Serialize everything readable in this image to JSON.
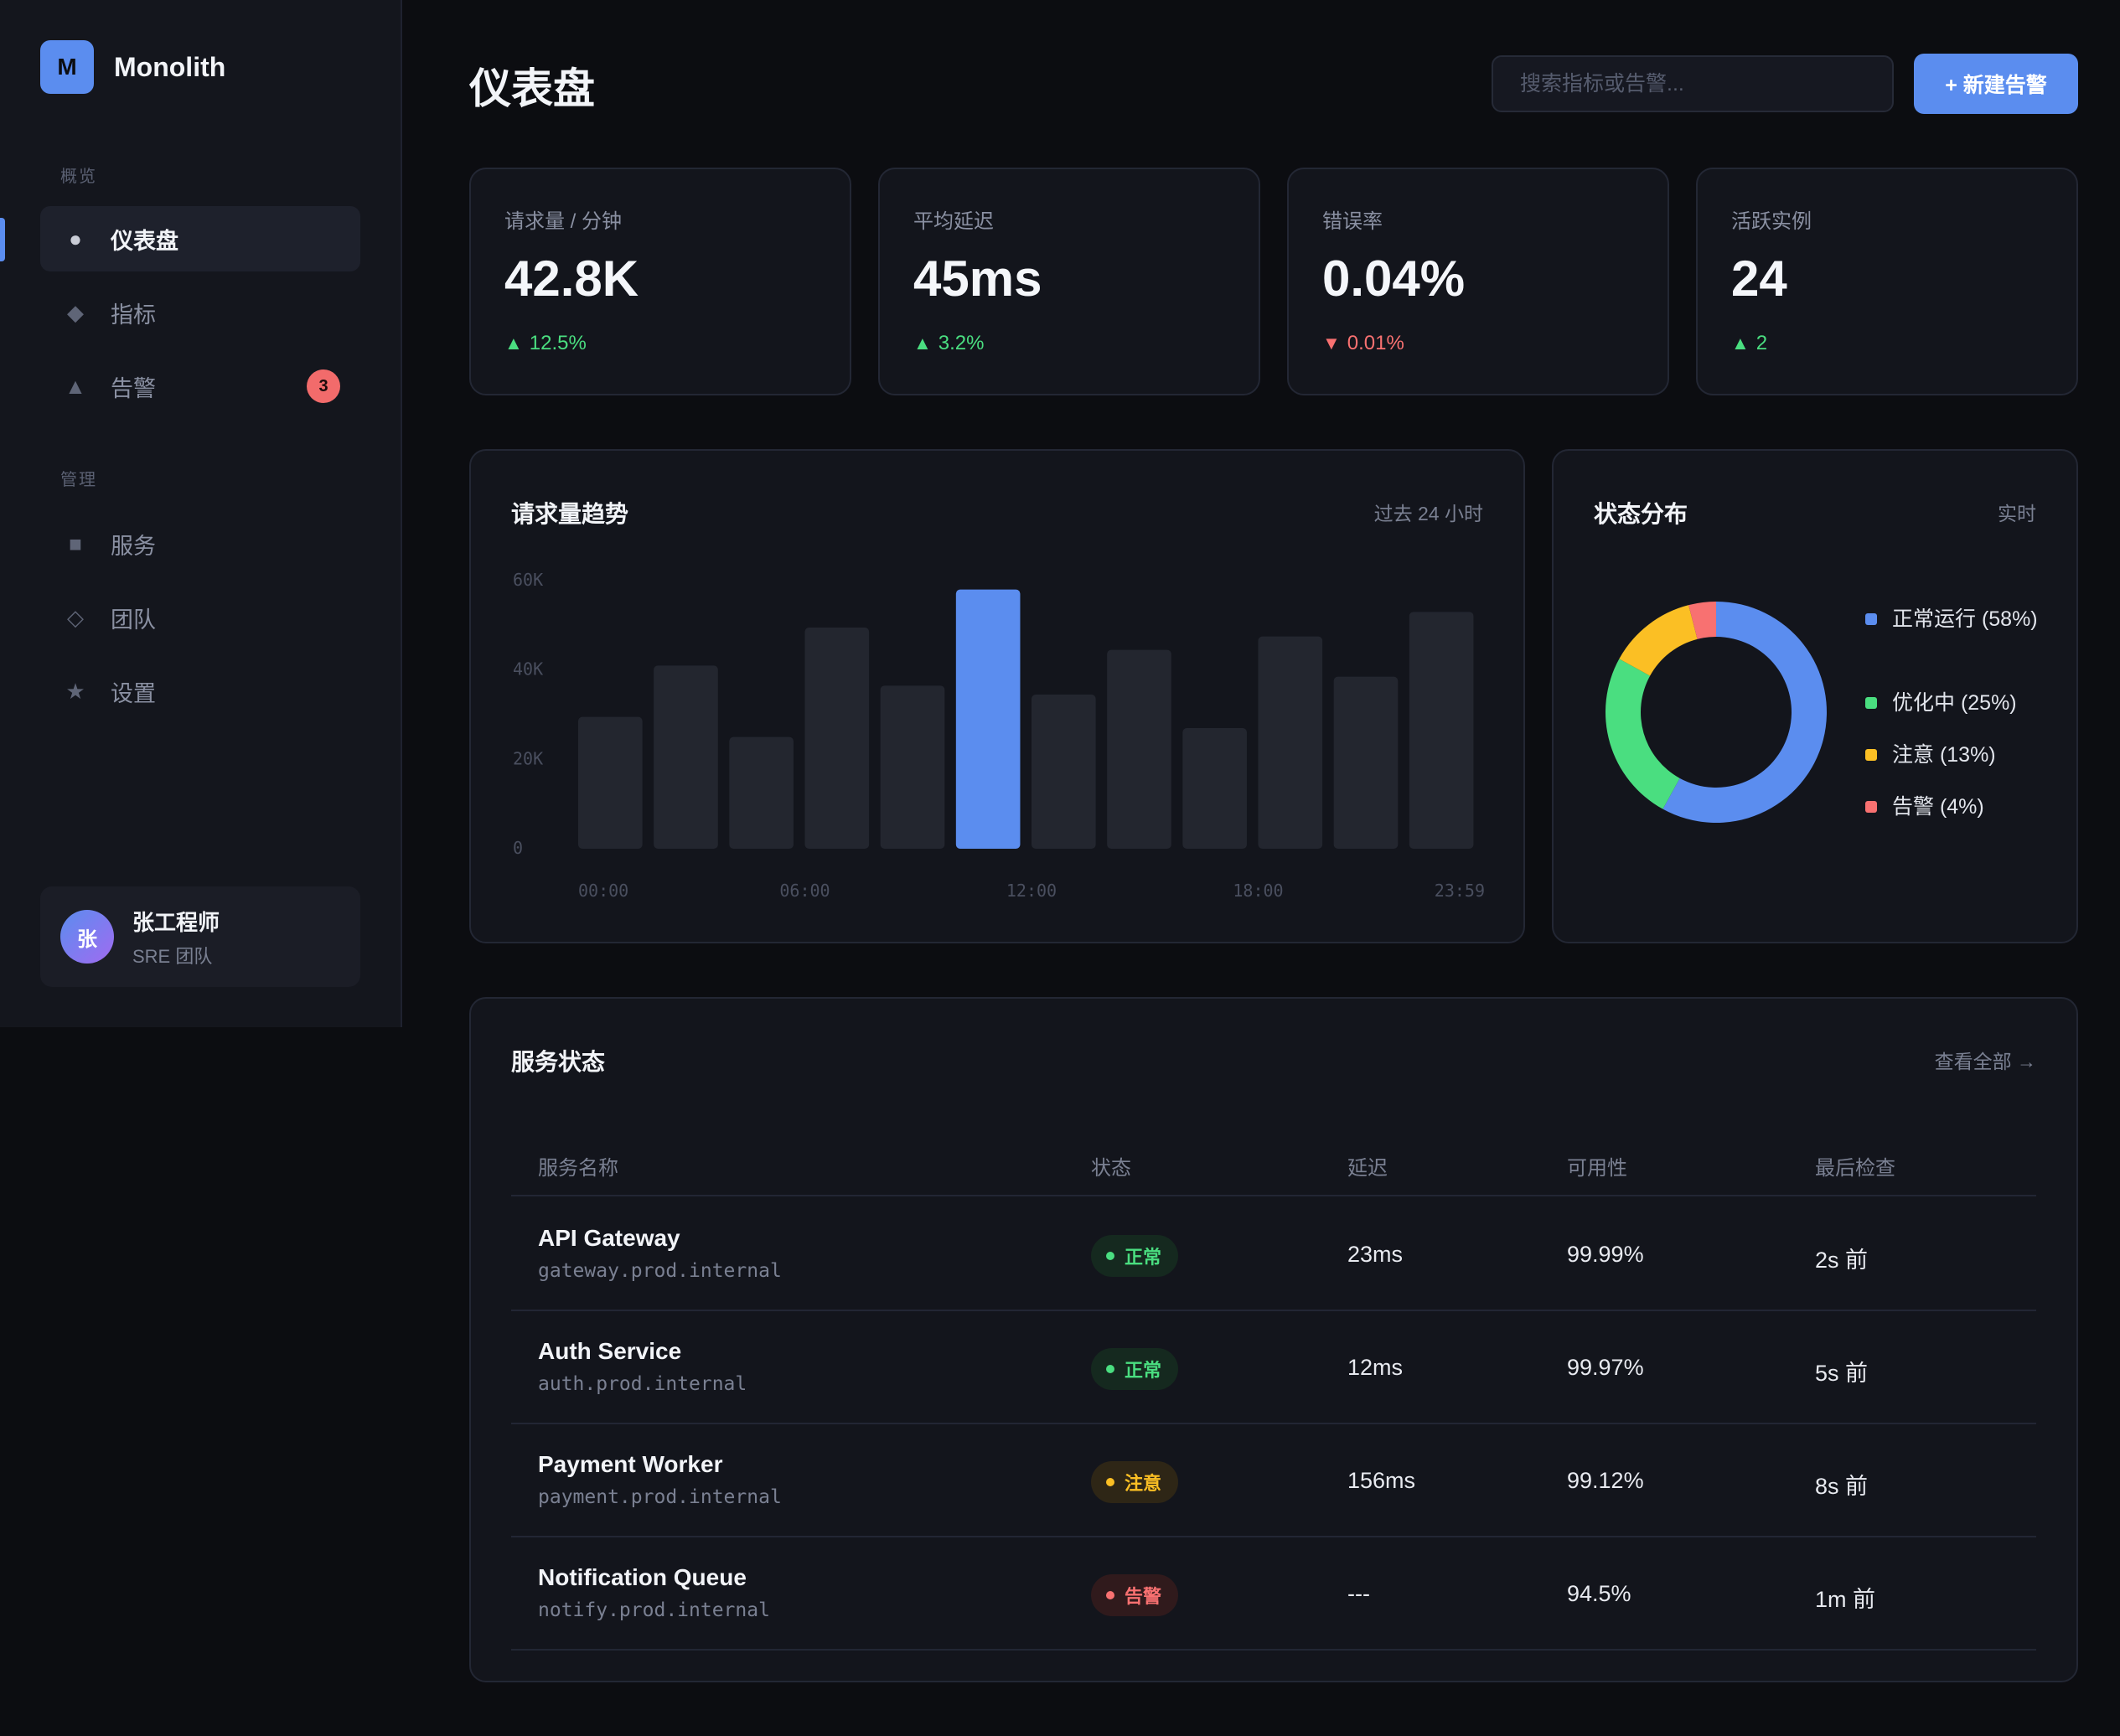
{
  "brand": {
    "logo_letter": "M",
    "name": "Monolith"
  },
  "sidebar": {
    "section_overview": "概览",
    "section_admin": "管理",
    "items": [
      {
        "label": "仪表盘",
        "icon": "circle-icon",
        "glyph": "●",
        "active": true
      },
      {
        "label": "指标",
        "icon": "diamond-icon",
        "glyph": "◆"
      },
      {
        "label": "告警",
        "icon": "triangle-icon",
        "glyph": "▲",
        "badge": "3"
      },
      {
        "label": "服务",
        "icon": "square-icon",
        "glyph": "■"
      },
      {
        "label": "团队",
        "icon": "diamond-outline-icon",
        "glyph": "◇"
      },
      {
        "label": "设置",
        "icon": "star-icon",
        "glyph": "★"
      }
    ],
    "user": {
      "avatar": "张",
      "name": "张工程师",
      "team": "SRE 团队"
    }
  },
  "header": {
    "title": "仪表盘",
    "search_placeholder": "搜索指标或告警...",
    "new_alert_label": "+ 新建告警"
  },
  "kpis": [
    {
      "label": "请求量 / 分钟",
      "value": "42.8K",
      "change": "12.5%",
      "direction": "up"
    },
    {
      "label": "平均延迟",
      "value": "45ms",
      "change": "3.2%",
      "direction": "up"
    },
    {
      "label": "错误率",
      "value": "0.04%",
      "change": "0.01%",
      "direction": "down"
    },
    {
      "label": "活跃实例",
      "value": "24",
      "change": "2",
      "direction": "up"
    }
  ],
  "request_chart": {
    "title": "请求量趋势",
    "meta": "过去 24 小时"
  },
  "status_chart": {
    "title": "状态分布",
    "meta": "实时"
  },
  "chart_data": [
    {
      "type": "bar",
      "title": "请求量趋势",
      "ylim": [
        0,
        60000
      ],
      "y_ticks": [
        "60K",
        "40K",
        "20K",
        "0"
      ],
      "x_ticks": [
        "00:00",
        "06:00",
        "12:00",
        "18:00",
        "23:59"
      ],
      "values": [
        29500,
        41000,
        25000,
        49500,
        36500,
        58000,
        34500,
        44500,
        27000,
        47500,
        38500,
        53000
      ],
      "highlight_index": 5,
      "colors": {
        "bar": "#23262f",
        "highlight": "#5b8def"
      }
    },
    {
      "type": "pie",
      "title": "状态分布",
      "slices": [
        {
          "label": "正常运行 (58%)",
          "value": 58,
          "color": "#5b8def"
        },
        {
          "label": "优化中 (25%)",
          "value": 25,
          "color": "#4ade80"
        },
        {
          "label": "注意 (13%)",
          "value": 13,
          "color": "#fbbf24"
        },
        {
          "label": "告警 (4%)",
          "value": 4,
          "color": "#f87171"
        }
      ]
    }
  ],
  "services": {
    "title": "服务状态",
    "view_all": "查看全部 →",
    "columns": [
      "服务名称",
      "状态",
      "延迟",
      "可用性",
      "最后检查"
    ],
    "rows": [
      {
        "name": "API Gateway",
        "host": "gateway.prod.internal",
        "status": "正常",
        "level": "ok",
        "latency": "23ms",
        "availability": "99.99%",
        "last_check": "2s 前"
      },
      {
        "name": "Auth Service",
        "host": "auth.prod.internal",
        "status": "正常",
        "level": "ok",
        "latency": "12ms",
        "availability": "99.97%",
        "last_check": "5s 前"
      },
      {
        "name": "Payment Worker",
        "host": "payment.prod.internal",
        "status": "注意",
        "level": "warn",
        "latency": "156ms",
        "availability": "99.12%",
        "last_check": "8s 前"
      },
      {
        "name": "Notification Queue",
        "host": "notify.prod.internal",
        "status": "告警",
        "level": "alert",
        "latency": "---",
        "availability": "94.5%",
        "last_check": "1m 前"
      }
    ]
  },
  "status_colors": {
    "ok": {
      "fg": "#4ade80",
      "bg": "#15291f"
    },
    "warn": {
      "fg": "#fbbf24",
      "bg": "#2e2616"
    },
    "alert": {
      "fg": "#f87171",
      "bg": "#301a1c"
    }
  }
}
